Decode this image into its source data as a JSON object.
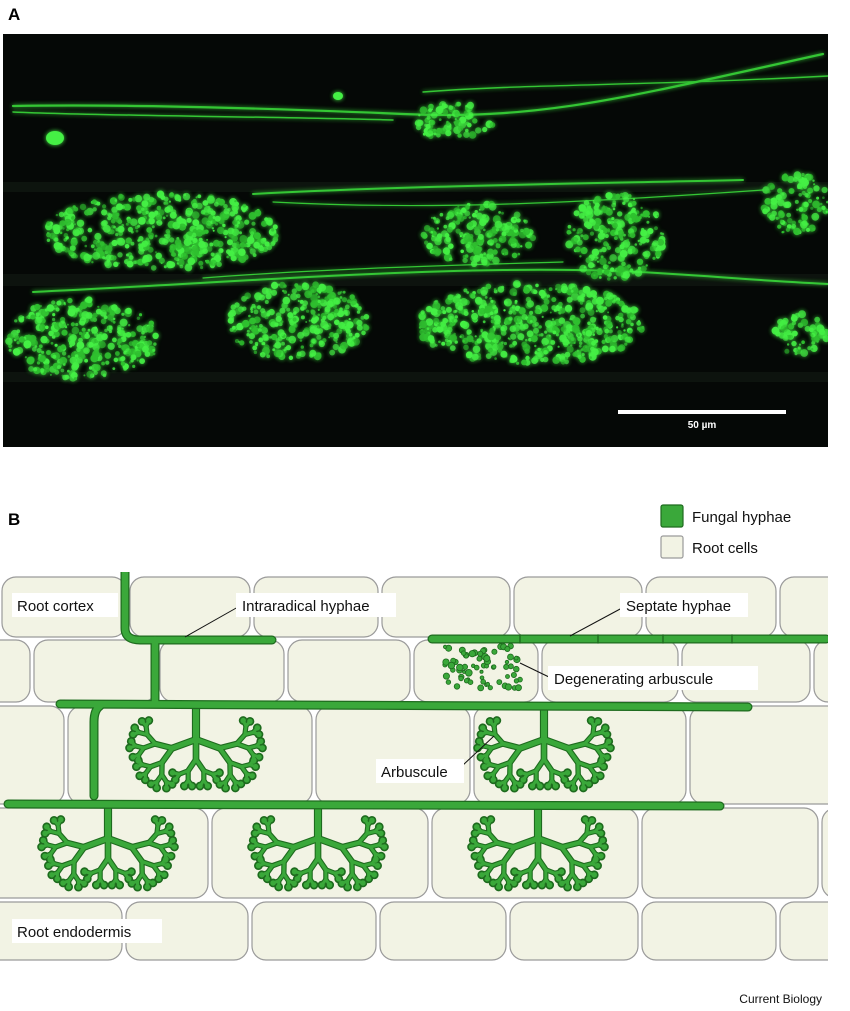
{
  "panel_a": {
    "letter": "A",
    "scale_bar_label": "50 µm"
  },
  "panel_b": {
    "letter": "B",
    "legend": [
      {
        "label": "Fungal hyphae",
        "color": "#3aa83a"
      },
      {
        "label": "Root cells",
        "color": "#f2f3e4"
      }
    ],
    "labels": {
      "root_cortex": "Root cortex",
      "intraradical_hyphae": "Intraradical hyphae",
      "septate_hyphae": "Septate hyphae",
      "degenerating_arbuscule": "Degenerating arbuscule",
      "arbuscule": "Arbuscule",
      "root_endodermis": "Root endodermis"
    }
  },
  "colors": {
    "hyphae_fill": "#3aa83a",
    "hyphae_stroke": "#1e6b1e",
    "cell_fill": "#f2f3e4",
    "cell_stroke": "#9a9a9a",
    "fluorescence": "#39e639"
  },
  "footer": "Current Biology"
}
